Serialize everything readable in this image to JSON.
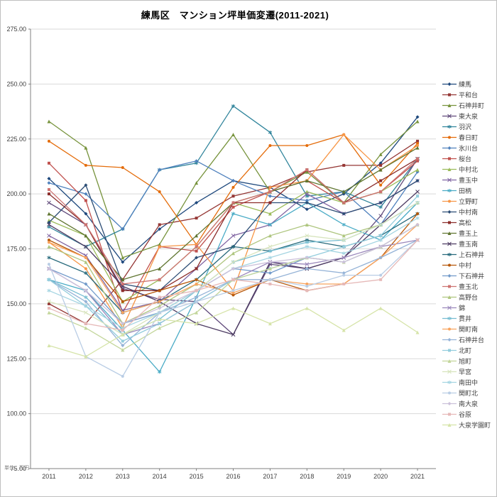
{
  "title": "練馬区　マンション坪単価変遷(2011-2021)",
  "unit_label": "単位：万円",
  "chart_data": {
    "type": "line",
    "x": [
      "2011",
      "2012",
      "2013",
      "2014",
      "2015",
      "2016",
      "2017",
      "2018",
      "2019",
      "2020",
      "2021"
    ],
    "ylim": [
      75,
      275
    ],
    "ytick_step": 25,
    "grid": true,
    "legend_position": "right",
    "axis_color": "#808080",
    "grid_color": "#D9D9D9",
    "marker_cycle": [
      "diamond",
      "square",
      "triangle",
      "x",
      "asterisk",
      "circle"
    ],
    "series": [
      {
        "name": "練馬",
        "color": "#1F497D",
        "values": [
          207,
          191,
          169,
          184,
          196,
          206,
          203,
          193,
          200,
          214,
          235
        ]
      },
      {
        "name": "平和台",
        "color": "#953735",
        "values": [
          150,
          141,
          161,
          186,
          189,
          199,
          203,
          210,
          213,
          213,
          224
        ]
      },
      {
        "name": "石神井町",
        "color": "#77933C",
        "values": [
          233,
          221,
          171,
          177,
          205,
          227,
          201,
          210,
          196,
          218,
          233
        ]
      },
      {
        "name": "東大泉",
        "color": "#604A7B",
        "values": [
          196,
          186,
          157,
          152,
          151,
          136,
          168,
          166,
          171,
          190,
          216
        ]
      },
      {
        "name": "羽沢",
        "color": "#31859C",
        "values": [
          185,
          176,
          184,
          211,
          214,
          240,
          228,
          199,
          201,
          194,
          216
        ]
      },
      {
        "name": "春日町",
        "color": "#E46C0A",
        "values": [
          224,
          213,
          212,
          201,
          177,
          203,
          222,
          222,
          227,
          204,
          223
        ]
      },
      {
        "name": "氷川台",
        "color": "#4F81BD",
        "values": [
          205,
          200,
          184,
          211,
          215,
          206,
          199,
          197,
          201,
          186,
          210
        ]
      },
      {
        "name": "桜台",
        "color": "#C0504D",
        "values": [
          214,
          197,
          146,
          176,
          174,
          194,
          201,
          206,
          196,
          201,
          215
        ]
      },
      {
        "name": "中村北",
        "color": "#9BBB59",
        "values": [
          188,
          181,
          151,
          161,
          176,
          196,
          191,
          201,
          196,
          201,
          211
        ]
      },
      {
        "name": "豊玉中",
        "color": "#8064A2",
        "values": [
          181,
          172,
          147,
          151,
          166,
          181,
          186,
          200,
          191,
          196,
          206
        ]
      },
      {
        "name": "田柄",
        "color": "#4BACC6",
        "values": [
          161,
          156,
          138,
          119,
          153,
          191,
          186,
          196,
          186,
          179,
          196
        ]
      },
      {
        "name": "立野町",
        "color": "#F79646",
        "values": [
          178,
          166,
          139,
          176,
          177,
          156,
          203,
          206,
          227,
          211,
          222
        ]
      },
      {
        "name": "中村南",
        "color": "#2C4D75",
        "values": [
          187,
          204,
          159,
          156,
          171,
          176,
          196,
          196,
          191,
          196,
          206
        ]
      },
      {
        "name": "高松",
        "color": "#8C2D2B",
        "values": [
          200,
          186,
          156,
          156,
          166,
          196,
          196,
          211,
          196,
          206,
          216
        ]
      },
      {
        "name": "豊玉上",
        "color": "#5F7530",
        "values": [
          191,
          181,
          161,
          166,
          181,
          196,
          201,
          206,
          201,
          211,
          221
        ]
      },
      {
        "name": "豊玉南",
        "color": "#4D3B62",
        "values": [
          186,
          176,
          158,
          151,
          141,
          136,
          169,
          166,
          171,
          186,
          201
        ]
      },
      {
        "name": "上石神井",
        "color": "#276A7C",
        "values": [
          171,
          164,
          146,
          151,
          161,
          176,
          174,
          179,
          176,
          181,
          191
        ]
      },
      {
        "name": "中村",
        "color": "#B65708",
        "values": [
          179,
          171,
          151,
          156,
          161,
          154,
          161,
          156,
          159,
          171,
          191
        ]
      },
      {
        "name": "下石神井",
        "color": "#729ACA",
        "values": [
          166,
          159,
          141,
          146,
          156,
          166,
          164,
          171,
          169,
          176,
          186
        ]
      },
      {
        "name": "豊玉北",
        "color": "#CD7371",
        "values": [
          202,
          186,
          159,
          161,
          176,
          196,
          201,
          211,
          196,
          201,
          216
        ]
      },
      {
        "name": "高野台",
        "color": "#AEC57E",
        "values": [
          176,
          169,
          141,
          149,
          159,
          173,
          181,
          186,
          181,
          186,
          196
        ]
      },
      {
        "name": "錦",
        "color": "#9A87BB",
        "values": [
          166,
          156,
          136,
          141,
          151,
          161,
          169,
          168,
          171,
          176,
          179
        ]
      },
      {
        "name": "貫井",
        "color": "#76BDD1",
        "values": [
          161,
          153,
          136,
          143,
          156,
          169,
          174,
          178,
          179,
          186,
          196
        ]
      },
      {
        "name": "関町南",
        "color": "#F8A35D",
        "values": [
          178,
          171,
          146,
          151,
          159,
          155,
          161,
          159,
          159,
          171,
          186
        ]
      },
      {
        "name": "石神井台",
        "color": "#95B3D7",
        "values": [
          161,
          151,
          131,
          146,
          153,
          161,
          161,
          166,
          164,
          171,
          179
        ]
      },
      {
        "name": "北町",
        "color": "#93CDDD",
        "values": [
          161,
          149,
          133,
          141,
          151,
          161,
          166,
          171,
          176,
          181,
          199
        ]
      },
      {
        "name": "旭町",
        "color": "#C3D69B",
        "values": [
          146,
          139,
          129,
          139,
          146,
          161,
          166,
          171,
          169,
          176,
          186
        ]
      },
      {
        "name": "早宮",
        "color": "#D7E4BD",
        "values": [
          151,
          146,
          136,
          146,
          156,
          169,
          176,
          181,
          179,
          186,
          196
        ]
      },
      {
        "name": "南田中",
        "color": "#A5D5E2",
        "values": [
          156,
          149,
          139,
          146,
          156,
          166,
          171,
          176,
          173,
          179,
          189
        ]
      },
      {
        "name": "関町北",
        "color": "#B9CDE5",
        "values": [
          168,
          126,
          117,
          146,
          151,
          156,
          161,
          158,
          163,
          163,
          179
        ]
      },
      {
        "name": "南大泉",
        "color": "#CCC1DA",
        "values": [
          166,
          156,
          141,
          148,
          156,
          166,
          169,
          171,
          169,
          176,
          186
        ]
      },
      {
        "name": "谷原",
        "color": "#E6B9B8",
        "values": [
          148,
          141,
          138,
          153,
          156,
          161,
          159,
          156,
          159,
          161,
          179
        ]
      },
      {
        "name": "大泉学園町",
        "color": "#D6E4A9",
        "values": [
          131,
          126,
          136,
          143,
          141,
          148,
          141,
          148,
          138,
          148,
          137
        ]
      }
    ]
  }
}
